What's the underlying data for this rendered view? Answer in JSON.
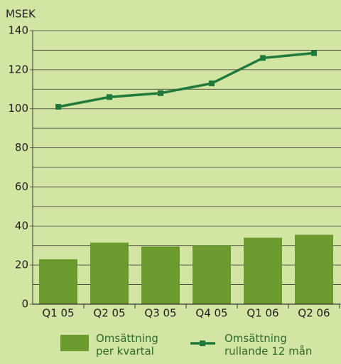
{
  "chart_data": {
    "type": "bar_line",
    "y_axis_label": "MSEK",
    "categories": [
      "Q1 05",
      "Q2 05",
      "Q3 05",
      "Q4 05",
      "Q1 06",
      "Q2 06"
    ],
    "series": [
      {
        "name": "Omsättning per kvartal",
        "type": "bar",
        "color": "#6b9a2f",
        "values": [
          23,
          31.5,
          29.5,
          30,
          34,
          35.5
        ]
      },
      {
        "name": "Omsättning rullande 12 mån",
        "type": "line",
        "color": "#1f7a3c",
        "values": [
          101,
          106,
          108,
          113,
          126,
          128.5
        ]
      }
    ],
    "ylim": [
      0,
      140
    ],
    "yticks": [
      0,
      20,
      40,
      60,
      80,
      100,
      120,
      140
    ],
    "minor_yticks": [
      10,
      30,
      50,
      70,
      90,
      110,
      130
    ],
    "grid": true
  }
}
